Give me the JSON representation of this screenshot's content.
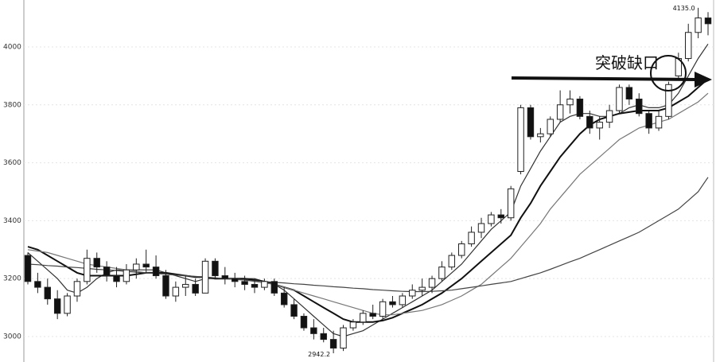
{
  "chart_data": {
    "type": "candlestick",
    "open": [
      3280,
      3190,
      3170,
      3130,
      3080,
      3140,
      3190,
      3270,
      3240,
      3210,
      3190,
      3230,
      3250,
      3240,
      3210,
      3140,
      3170,
      3180,
      3150,
      3260,
      3210,
      3200,
      3190,
      3180,
      3170,
      3190,
      3150,
      3110,
      3070,
      3030,
      3010,
      2990,
      2960,
      3030,
      3050,
      3080,
      3070,
      3120,
      3110,
      3140,
      3160,
      3170,
      3200,
      3240,
      3280,
      3320,
      3360,
      3390,
      3420,
      3410,
      3570,
      3790,
      3690,
      3700,
      3750,
      3800,
      3820,
      3760,
      3720,
      3740,
      3780,
      3860,
      3820,
      3770,
      3720,
      3760,
      3900,
      3960,
      4050,
      4100
    ],
    "high": [
      3290,
      3220,
      3200,
      3160,
      3150,
      3200,
      3300,
      3290,
      3260,
      3240,
      3250,
      3270,
      3300,
      3280,
      3230,
      3190,
      3210,
      3200,
      3270,
      3270,
      3240,
      3220,
      3210,
      3200,
      3200,
      3200,
      3170,
      3130,
      3080,
      3060,
      3030,
      3020,
      3040,
      3060,
      3090,
      3110,
      3130,
      3140,
      3150,
      3180,
      3200,
      3210,
      3260,
      3290,
      3330,
      3380,
      3410,
      3430,
      3440,
      3520,
      3800,
      3800,
      3720,
      3760,
      3850,
      3850,
      3830,
      3780,
      3760,
      3800,
      3870,
      3870,
      3840,
      3780,
      3780,
      3880,
      3980,
      4080,
      4135,
      4120
    ],
    "low": [
      3180,
      3150,
      3110,
      3060,
      3070,
      3120,
      3180,
      3220,
      3190,
      3170,
      3180,
      3200,
      3220,
      3200,
      3130,
      3120,
      3140,
      3140,
      3150,
      3200,
      3180,
      3170,
      3160,
      3150,
      3160,
      3140,
      3100,
      3060,
      3020,
      2990,
      2980,
      2942.2,
      2950,
      3020,
      3040,
      3060,
      3060,
      3100,
      3100,
      3130,
      3140,
      3150,
      3190,
      3230,
      3270,
      3310,
      3340,
      3380,
      3390,
      3400,
      3560,
      3680,
      3670,
      3690,
      3740,
      3770,
      3750,
      3700,
      3680,
      3720,
      3770,
      3800,
      3760,
      3700,
      3710,
      3750,
      3890,
      3950,
      4030,
      4040
    ],
    "close": [
      3190,
      3170,
      3130,
      3080,
      3140,
      3190,
      3270,
      3240,
      3210,
      3190,
      3230,
      3250,
      3240,
      3210,
      3140,
      3170,
      3180,
      3150,
      3260,
      3210,
      3200,
      3190,
      3180,
      3170,
      3190,
      3150,
      3110,
      3070,
      3030,
      3010,
      2990,
      2960,
      3030,
      3050,
      3080,
      3070,
      3120,
      3110,
      3140,
      3160,
      3170,
      3200,
      3240,
      3280,
      3320,
      3360,
      3390,
      3420,
      3410,
      3510,
      3790,
      3690,
      3700,
      3750,
      3800,
      3820,
      3760,
      3720,
      3740,
      3780,
      3860,
      3820,
      3770,
      3720,
      3760,
      3870,
      3960,
      4050,
      4100,
      4080
    ],
    "up_color": "#ffffff",
    "down_color": "#111111",
    "edge_color": "#222222",
    "moving_averages": [
      {
        "color": "#333333",
        "values": [
          3290,
          3260,
          3230,
          3200,
          3160,
          3150,
          3170,
          3200,
          3220,
          3230,
          3230,
          3230,
          3230,
          3230,
          3220,
          3210,
          3200,
          3190,
          3200,
          3200,
          3200,
          3200,
          3200,
          3200,
          3190,
          3180,
          3160,
          3130,
          3100,
          3070,
          3040,
          3010,
          3000,
          3010,
          3020,
          3040,
          3060,
          3080,
          3100,
          3120,
          3140,
          3160,
          3190,
          3220,
          3250,
          3290,
          3330,
          3370,
          3400,
          3430,
          3520,
          3580,
          3640,
          3690,
          3740,
          3760,
          3770,
          3770,
          3760,
          3760,
          3770,
          3790,
          3800,
          3790,
          3790,
          3800,
          3840,
          3900,
          3960,
          4010
        ]
      },
      {
        "color": "#111111",
        "values": [
          3310,
          3300,
          3280,
          3260,
          3240,
          3220,
          3210,
          3210,
          3210,
          3210,
          3210,
          3215,
          3220,
          3220,
          3220,
          3215,
          3210,
          3205,
          3205,
          3200,
          3200,
          3200,
          3200,
          3195,
          3190,
          3180,
          3170,
          3160,
          3140,
          3120,
          3100,
          3080,
          3060,
          3050,
          3050,
          3050,
          3055,
          3065,
          3080,
          3095,
          3110,
          3130,
          3150,
          3175,
          3200,
          3230,
          3260,
          3290,
          3320,
          3350,
          3410,
          3460,
          3520,
          3570,
          3620,
          3660,
          3700,
          3730,
          3750,
          3760,
          3770,
          3775,
          3780,
          3780,
          3780,
          3790,
          3810,
          3830,
          3860,
          3890
        ]
      },
      {
        "color": "#777777",
        "values": [
          3300,
          3295,
          3290,
          3280,
          3270,
          3260,
          3250,
          3245,
          3240,
          3235,
          3230,
          3225,
          3220,
          3218,
          3215,
          3212,
          3210,
          3208,
          3205,
          3203,
          3200,
          3198,
          3195,
          3190,
          3185,
          3180,
          3170,
          3160,
          3150,
          3140,
          3130,
          3120,
          3110,
          3100,
          3090,
          3080,
          3075,
          3075,
          3080,
          3085,
          3090,
          3100,
          3110,
          3125,
          3140,
          3160,
          3180,
          3210,
          3240,
          3270,
          3310,
          3350,
          3390,
          3440,
          3480,
          3520,
          3560,
          3590,
          3620,
          3650,
          3680,
          3700,
          3720,
          3730,
          3740,
          3750,
          3770,
          3790,
          3810,
          3840
        ]
      },
      {
        "color": "#444444",
        "values": [
          3250,
          3248,
          3245,
          3243,
          3240,
          3238,
          3235,
          3232,
          3230,
          3228,
          3225,
          3222,
          3220,
          3218,
          3215,
          3212,
          3210,
          3207,
          3205,
          3202,
          3200,
          3197,
          3195,
          3192,
          3190,
          3187,
          3185,
          3182,
          3180,
          3177,
          3175,
          3172,
          3170,
          3167,
          3165,
          3162,
          3160,
          3158,
          3156,
          3155,
          3155,
          3156,
          3158,
          3160,
          3165,
          3170,
          3175,
          3180,
          3185,
          3190,
          3200,
          3210,
          3220,
          3232,
          3245,
          3258,
          3270,
          3285,
          3300,
          3315,
          3330,
          3345,
          3360,
          3380,
          3400,
          3420,
          3440,
          3470,
          3500,
          3550
        ]
      }
    ],
    "ylim": [
      2912,
      4162
    ],
    "yticks": [
      3000,
      3200,
      3400,
      3600,
      3800,
      4000
    ],
    "grid": true,
    "annotations": {
      "high_label": "4135.0",
      "low_label": "2942.2",
      "gap_label": "突破缺口"
    }
  }
}
